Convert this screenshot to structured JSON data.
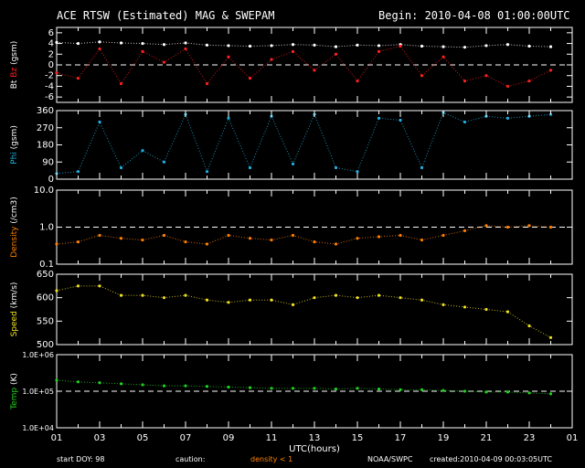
{
  "header": {
    "title": "ACE RTSW (Estimated) MAG & SWEPAM",
    "begin": "Begin: 2010-04-08 01:00:00UTC"
  },
  "footer": {
    "start_doy": "start DOY:  98",
    "caution": "caution:",
    "density_note": "density < 1",
    "source": "NOAA/SWPC",
    "created": "created:2010-04-09 00:03:05UTC"
  },
  "colors": {
    "bt": "#ffffff",
    "bz": "#ff2020",
    "phi": "#20b0e0",
    "density": "#ff8000",
    "speed": "#f0e020",
    "temp": "#20d020"
  },
  "chart_data": [
    {
      "type": "scatter",
      "panel": "magnetic field",
      "ylabel_parts": [
        "Bt",
        "Bz",
        "(gsm)"
      ],
      "ylim": [
        -7,
        7
      ],
      "yticks": [
        "-6",
        "-4",
        "-2",
        "0",
        "2",
        "4",
        "6"
      ],
      "reference_line": 0,
      "series": [
        {
          "name": "Bt",
          "x": [
            1,
            2,
            3,
            4,
            5,
            6,
            7,
            8,
            9,
            10,
            11,
            12,
            13,
            14,
            15,
            16,
            17,
            18,
            19,
            20,
            21,
            22,
            23,
            24
          ],
          "y": [
            4.2,
            4.0,
            4.3,
            4.1,
            4.0,
            3.8,
            4.1,
            3.7,
            3.6,
            3.5,
            3.6,
            3.8,
            3.7,
            3.4,
            3.7,
            3.6,
            3.8,
            3.5,
            3.4,
            3.3,
            3.6,
            3.8,
            3.5,
            3.4
          ]
        },
        {
          "name": "Bz",
          "x": [
            1,
            2,
            3,
            4,
            5,
            6,
            7,
            8,
            9,
            10,
            11,
            12,
            13,
            14,
            15,
            16,
            17,
            18,
            19,
            20,
            21,
            22,
            23,
            24
          ],
          "y": [
            -1.5,
            -2.5,
            3.0,
            -3.5,
            2.5,
            0.5,
            3.0,
            -3.5,
            1.5,
            -2.5,
            1.0,
            2.5,
            -1.0,
            2.0,
            -3.0,
            2.5,
            3.5,
            -2.0,
            1.5,
            -3.0,
            -2.0,
            -4.0,
            -3.0,
            -1.0
          ]
        }
      ]
    },
    {
      "type": "scatter",
      "panel": "phi",
      "ylabel_parts": [
        "Phi",
        "(gsm)"
      ],
      "ylim": [
        0,
        360
      ],
      "yticks": [
        "0",
        "90",
        "180",
        "270",
        "360"
      ],
      "series": [
        {
          "name": "Phi",
          "x": [
            1,
            2,
            3,
            4,
            5,
            6,
            7,
            8,
            9,
            10,
            11,
            12,
            13,
            14,
            15,
            16,
            17,
            18,
            19,
            20,
            21,
            22,
            23,
            24
          ],
          "y": [
            30,
            40,
            300,
            60,
            150,
            90,
            340,
            40,
            320,
            60,
            330,
            80,
            340,
            60,
            40,
            320,
            310,
            60,
            350,
            300,
            330,
            320,
            330,
            340
          ]
        }
      ]
    },
    {
      "type": "scatter",
      "panel": "density",
      "ylabel_parts": [
        "Density",
        "(/cm3)"
      ],
      "yscale": "log",
      "ylim": [
        0.1,
        10
      ],
      "yticks": [
        "0.1",
        "1.0",
        "10.0"
      ],
      "reference_line": 1,
      "series": [
        {
          "name": "Density",
          "x": [
            1,
            2,
            3,
            4,
            5,
            6,
            7,
            8,
            9,
            10,
            11,
            12,
            13,
            14,
            15,
            16,
            17,
            18,
            19,
            20,
            21,
            22,
            23,
            24
          ],
          "y": [
            0.35,
            0.4,
            0.6,
            0.5,
            0.45,
            0.6,
            0.4,
            0.35,
            0.6,
            0.5,
            0.45,
            0.6,
            0.4,
            0.35,
            0.5,
            0.55,
            0.6,
            0.45,
            0.6,
            0.8,
            1.1,
            1.0,
            1.1,
            1.0
          ]
        }
      ]
    },
    {
      "type": "scatter",
      "panel": "speed",
      "ylabel_parts": [
        "Speed",
        "(km/s)"
      ],
      "ylim": [
        500,
        650
      ],
      "yticks": [
        "500",
        "550",
        "600",
        "650"
      ],
      "series": [
        {
          "name": "Speed",
          "x": [
            1,
            2,
            3,
            4,
            5,
            6,
            7,
            8,
            9,
            10,
            11,
            12,
            13,
            14,
            15,
            16,
            17,
            18,
            19,
            20,
            21,
            22,
            23,
            24
          ],
          "y": [
            615,
            625,
            625,
            605,
            605,
            600,
            605,
            595,
            590,
            595,
            595,
            585,
            600,
            605,
            600,
            605,
            600,
            595,
            585,
            580,
            575,
            570,
            540,
            515
          ]
        }
      ]
    },
    {
      "type": "scatter",
      "panel": "temperature",
      "ylabel_parts": [
        "Temp",
        "(K)"
      ],
      "yscale": "log",
      "ylim": [
        10000,
        1000000
      ],
      "yticks": [
        "1.0E+04",
        "1.0E+05",
        "1.0E+06"
      ],
      "reference_line": 100000,
      "series": [
        {
          "name": "Temp",
          "x": [
            1,
            2,
            3,
            4,
            5,
            6,
            7,
            8,
            9,
            10,
            11,
            12,
            13,
            14,
            15,
            16,
            17,
            18,
            19,
            20,
            21,
            22,
            23,
            24
          ],
          "y": [
            200000,
            180000,
            170000,
            160000,
            150000,
            140000,
            140000,
            135000,
            130000,
            125000,
            120000,
            120000,
            120000,
            115000,
            120000,
            115000,
            110000,
            110000,
            105000,
            100000,
            95000,
            95000,
            90000,
            85000
          ]
        }
      ]
    }
  ],
  "x_axis": {
    "label": "UTC(hours)",
    "range": [
      1,
      25
    ],
    "tick_labels": [
      "01",
      "03",
      "05",
      "07",
      "09",
      "11",
      "13",
      "15",
      "17",
      "19",
      "21",
      "23",
      "01"
    ]
  }
}
